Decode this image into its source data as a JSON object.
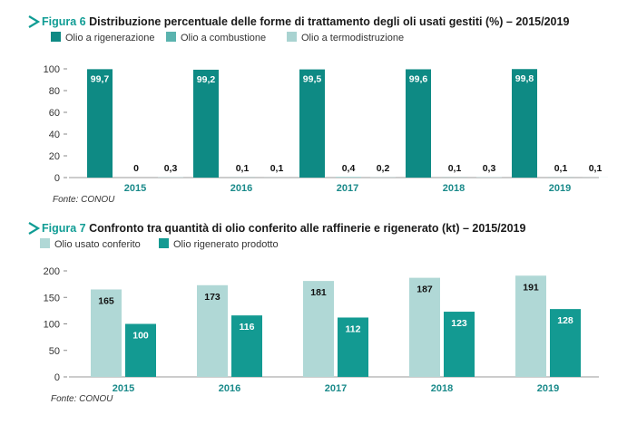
{
  "chart_data": [
    {
      "type": "bar",
      "figure_label": "Figura 6",
      "title": "Distribuzione percentuale delle forme di trattamento degli oli usati gestiti (%) – 2015/2019",
      "categories": [
        "2015",
        "2016",
        "2017",
        "2018",
        "2019"
      ],
      "series": [
        {
          "name": "Olio a rigenerazione",
          "color": "#0e8a84",
          "values": [
            99.7,
            99.2,
            99.5,
            99.6,
            99.8
          ],
          "labels": [
            "99,7",
            "99,2",
            "99,5",
            "99,6",
            "99,8"
          ]
        },
        {
          "name": "Olio a combustione",
          "color": "#5ab3ae",
          "values": [
            0,
            0.1,
            0.4,
            0.1,
            0.1
          ],
          "labels": [
            "0",
            "0,1",
            "0,4",
            "0,1",
            "0,1"
          ]
        },
        {
          "name": "Olio a termodistruzione",
          "color": "#a9d3d1",
          "values": [
            0.3,
            0.1,
            0.2,
            0.3,
            0.1
          ],
          "labels": [
            "0,3",
            "0,1",
            "0,2",
            "0,3",
            "0,1"
          ]
        }
      ],
      "ylim": [
        0,
        100
      ],
      "yticks": [
        "0",
        "20",
        "40",
        "60",
        "80",
        "100"
      ],
      "source": "Fonte: CONOU",
      "legend_position": "top-left",
      "grid": false
    },
    {
      "type": "bar",
      "figure_label": "Figura 7",
      "title": "Confronto tra quantità di olio conferito alle raffinerie e rigenerato (kt) – 2015/2019",
      "categories": [
        "2015",
        "2016",
        "2017",
        "2018",
        "2019"
      ],
      "series": [
        {
          "name": "Olio usato conferito",
          "color": "#b0d8d6",
          "values": [
            165,
            173,
            181,
            187,
            191
          ],
          "labels": [
            "165",
            "173",
            "181",
            "187",
            "191"
          ]
        },
        {
          "name": "Olio rigenerato prodotto",
          "color": "#139a92",
          "values": [
            100,
            116,
            112,
            123,
            128
          ],
          "labels": [
            "100",
            "116",
            "112",
            "123",
            "128"
          ]
        }
      ],
      "ylim": [
        0,
        200
      ],
      "yticks": [
        "0",
        "50",
        "100",
        "150",
        "200"
      ],
      "source": "Fonte: CONOU",
      "legend_position": "top-left",
      "grid": false
    }
  ],
  "colors": {
    "accent": "#0f9c94",
    "xtick": "#1a8a8a"
  }
}
